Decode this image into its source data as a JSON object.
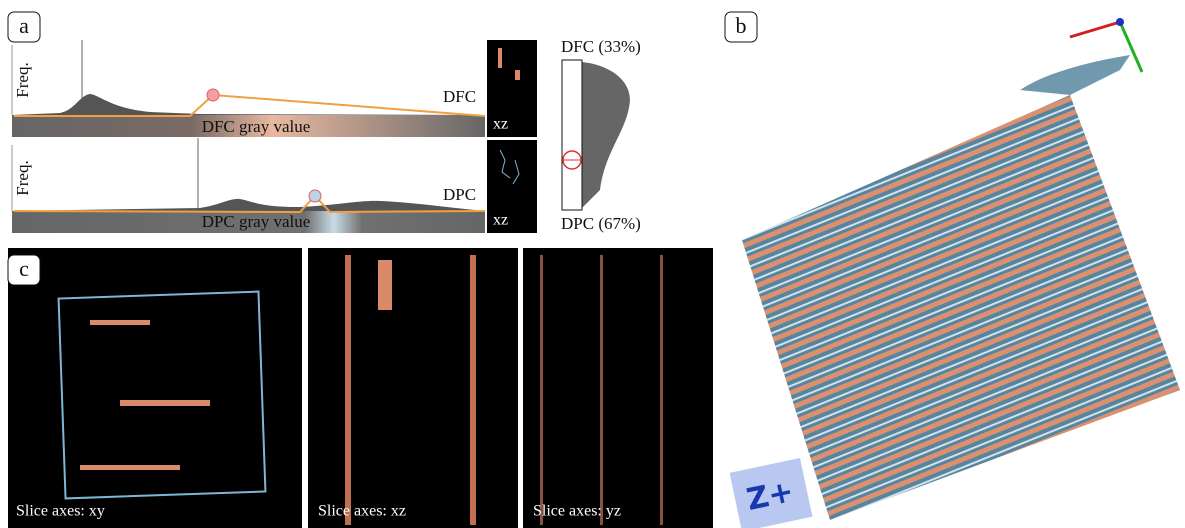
{
  "panels": {
    "a": {
      "label": "a",
      "histograms": [
        {
          "axis_label": "Freq.",
          "name": "DFC",
          "x_label": "DFC gray value",
          "slice_label": "xz"
        },
        {
          "axis_label": "Freq.",
          "name": "DPC",
          "x_label": "DPC gray value",
          "slice_label": "xz"
        }
      ],
      "ratio": {
        "top": "DFC (33%)",
        "bottom": "DPC (67%)"
      }
    },
    "b": {
      "label": "b",
      "view_cube": "Z+"
    },
    "c": {
      "label": "c",
      "slices": [
        "Slice axes: xy",
        "Slice axes: xz",
        "Slice axes: yz"
      ]
    }
  }
}
